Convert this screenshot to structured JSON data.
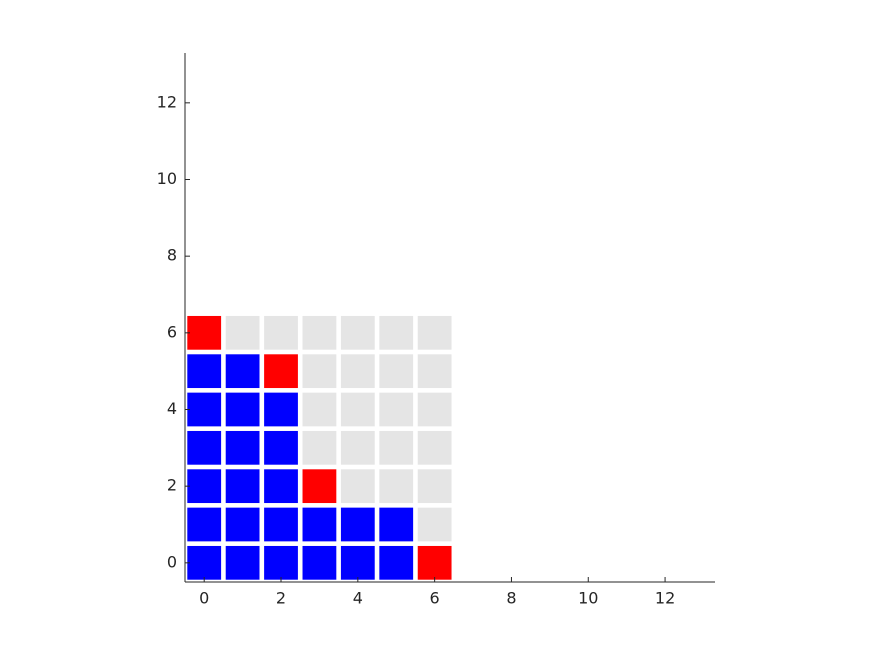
{
  "chart_data": {
    "type": "cell-grid",
    "xlim": [
      -0.5,
      13.3
    ],
    "ylim": [
      -0.5,
      13.3
    ],
    "xticks": [
      0,
      2,
      4,
      6,
      8,
      10,
      12
    ],
    "yticks": [
      0,
      2,
      4,
      6,
      8,
      10,
      12
    ],
    "cell_size": 0.88,
    "cells": [
      [
        "#0000ff",
        "#0000ff",
        "#0000ff",
        "#0000ff",
        "#0000ff",
        "#0000ff",
        "#ff0000"
      ],
      [
        "#0000ff",
        "#0000ff",
        "#0000ff",
        "#0000ff",
        "#0000ff",
        "#0000ff",
        "#e5e5e5"
      ],
      [
        "#0000ff",
        "#0000ff",
        "#0000ff",
        "#ff0000",
        "#e5e5e5",
        "#e5e5e5",
        "#e5e5e5"
      ],
      [
        "#0000ff",
        "#0000ff",
        "#0000ff",
        "#e5e5e5",
        "#e5e5e5",
        "#e5e5e5",
        "#e5e5e5"
      ],
      [
        "#0000ff",
        "#0000ff",
        "#0000ff",
        "#e5e5e5",
        "#e5e5e5",
        "#e5e5e5",
        "#e5e5e5"
      ],
      [
        "#0000ff",
        "#0000ff",
        "#ff0000",
        "#e5e5e5",
        "#e5e5e5",
        "#e5e5e5",
        "#e5e5e5"
      ],
      [
        "#ff0000",
        "#e5e5e5",
        "#e5e5e5",
        "#e5e5e5",
        "#e5e5e5",
        "#e5e5e5",
        "#e5e5e5"
      ]
    ]
  }
}
